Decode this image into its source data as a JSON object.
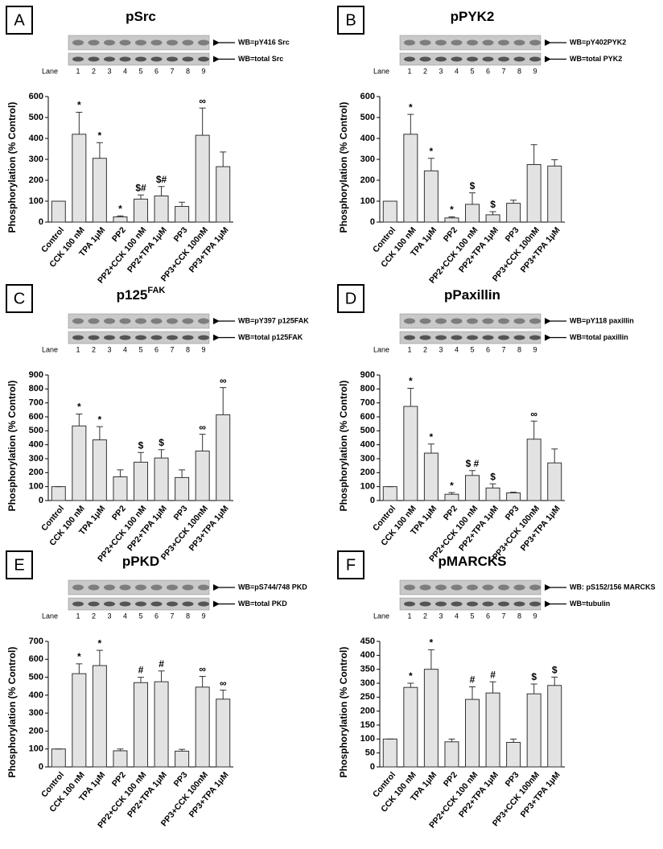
{
  "chart_data": [
    {
      "type": "bar",
      "panel": "A",
      "title": "pSrc",
      "blot_labels": [
        "WB=pY416 Src",
        "WB=total Src"
      ],
      "lane_label": "Lane",
      "lanes": [
        1,
        2,
        3,
        4,
        5,
        6,
        7,
        8,
        9
      ],
      "ylabel": "Phosphorylation (% Control)",
      "categories": [
        "Control",
        "CCK 100 nM",
        "TPA 1μM",
        "PP2",
        "PP2+CCK 100 nM",
        "PP2+TPA 1μM",
        "PP3",
        "PP3+CCK 100nM",
        "PP3+TPA 1μM"
      ],
      "values": [
        100,
        420,
        305,
        25,
        110,
        125,
        75,
        415,
        265
      ],
      "errors": [
        0,
        105,
        75,
        5,
        20,
        45,
        20,
        130,
        70
      ],
      "annotations": [
        null,
        "*",
        "*",
        "*",
        "$#",
        "$#",
        null,
        "∞",
        null
      ],
      "color": "#e3e3e3",
      "ylim": [
        0,
        600
      ],
      "yticks": [
        0,
        100,
        200,
        300,
        400,
        500,
        600
      ]
    },
    {
      "type": "bar",
      "panel": "B",
      "title": "pPYK2",
      "blot_labels": [
        "WB=pY402PYK2",
        "WB=total PYK2"
      ],
      "lane_label": "Lane",
      "lanes": [
        1,
        2,
        3,
        4,
        5,
        6,
        7,
        8,
        9
      ],
      "ylabel": "Phosphorylation (% Control)",
      "categories": [
        "Control",
        "CCK 100 nM",
        "TPA 1μM",
        "PP2",
        "PP2+CCK 100 nM",
        "PP2+TPA 1μM",
        "PP3",
        "PP3+CCK 100nM",
        "PP3+TPA 1μM"
      ],
      "values": [
        100,
        420,
        245,
        20,
        85,
        35,
        90,
        275,
        268
      ],
      "errors": [
        0,
        95,
        60,
        5,
        55,
        15,
        15,
        95,
        30
      ],
      "annotations": [
        null,
        "*",
        "*",
        "*",
        "$",
        "$",
        null,
        null,
        null
      ],
      "color": "#e3e3e3",
      "ylim": [
        0,
        600
      ],
      "yticks": [
        0,
        100,
        200,
        300,
        400,
        500,
        600
      ]
    },
    {
      "type": "bar",
      "panel": "C",
      "title": "p125",
      "title_sup": "FAK",
      "blot_labels": [
        "WB=pY397 p125FAK",
        "WB=total p125FAK"
      ],
      "lane_label": "Lane",
      "lanes": [
        1,
        2,
        3,
        4,
        5,
        6,
        7,
        8,
        9
      ],
      "ylabel": "Phosphorylation (% Control)",
      "categories": [
        "Control",
        "CCK 100 nM",
        "TPA 1μM",
        "PP2",
        "PP2+CCK 100 nM",
        "PP2+TPA 1μM",
        "PP3",
        "PP3+CCK 100nM",
        "PP3+TPA 1μM"
      ],
      "values": [
        100,
        535,
        435,
        170,
        275,
        305,
        165,
        355,
        615
      ],
      "errors": [
        0,
        85,
        95,
        50,
        70,
        60,
        55,
        120,
        195
      ],
      "annotations": [
        null,
        "*",
        "*",
        null,
        "$",
        "$",
        null,
        "∞",
        "∞"
      ],
      "color": "#e3e3e3",
      "ylim": [
        0,
        900
      ],
      "yticks": [
        0,
        100,
        200,
        300,
        400,
        500,
        600,
        700,
        800,
        900
      ]
    },
    {
      "type": "bar",
      "panel": "D",
      "title": "pPaxillin",
      "blot_labels": [
        "WB=pY118 paxillin",
        "WB=total paxillin"
      ],
      "lane_label": "Lane",
      "lanes": [
        1,
        2,
        3,
        4,
        5,
        6,
        7,
        8,
        9
      ],
      "ylabel": "Phosphorylation (% Control)",
      "categories": [
        "Control",
        "CCK 100 nM",
        "TPA 1μM",
        "PP2",
        "PP2+CCK 100 nM",
        "PP2+TPA 1μM",
        "PP3",
        "PP3+CCK 100nM",
        "PP3+TPA 1μM"
      ],
      "values": [
        100,
        675,
        340,
        45,
        180,
        90,
        55,
        440,
        270
      ],
      "errors": [
        0,
        130,
        65,
        12,
        35,
        30,
        5,
        130,
        100
      ],
      "annotations": [
        null,
        "*",
        "*",
        "*",
        "$ #",
        "$",
        null,
        "∞",
        null
      ],
      "color": "#e3e3e3",
      "ylim": [
        0,
        900
      ],
      "yticks": [
        0,
        100,
        200,
        300,
        400,
        500,
        600,
        700,
        800,
        900
      ]
    },
    {
      "type": "bar",
      "panel": "E",
      "title": "pPKD",
      "blot_labels": [
        "WB=pS744/748 PKD",
        "WB=total PKD"
      ],
      "lane_label": "Lane",
      "lanes": [
        1,
        2,
        3,
        4,
        5,
        6,
        7,
        8,
        9
      ],
      "ylabel": "Phosphorylation (% Control)",
      "categories": [
        "Control",
        "CCK 100 nM",
        "TPA 1μM",
        "PP2",
        "PP2+CCK 100 nM",
        "PP2+TPA 1μM",
        "PP3",
        "PP3+CCK 100nM",
        "PP3+TPA 1μM"
      ],
      "values": [
        100,
        520,
        565,
        90,
        470,
        475,
        88,
        445,
        378
      ],
      "errors": [
        0,
        55,
        85,
        10,
        30,
        60,
        10,
        60,
        50
      ],
      "annotations": [
        null,
        "*",
        "*",
        null,
        "#",
        "#",
        null,
        "∞",
        "∞"
      ],
      "color": "#e3e3e3",
      "ylim": [
        0,
        700
      ],
      "yticks": [
        0,
        100,
        200,
        300,
        400,
        500,
        600,
        700
      ]
    },
    {
      "type": "bar",
      "panel": "F",
      "title": "pMARCKS",
      "blot_labels": [
        "WB: pS152/156 MARCKS",
        "WB=tubulin"
      ],
      "lane_label": "Lane",
      "lanes": [
        1,
        2,
        3,
        4,
        5,
        6,
        7,
        8,
        9
      ],
      "ylabel": "Phosphorylation (% Control)",
      "categories": [
        "Control",
        "CCK 100 nM",
        "TPA 1μM",
        "PP2",
        "PP2+CCK 100 nM",
        "PP2+TPA 1μM",
        "PP3",
        "PP3+CCK 100nM",
        "PP3+TPA 1μM"
      ],
      "values": [
        100,
        285,
        350,
        90,
        242,
        265,
        88,
        262,
        292
      ],
      "errors": [
        0,
        15,
        70,
        10,
        45,
        40,
        12,
        35,
        30
      ],
      "annotations": [
        null,
        "*",
        "*",
        null,
        "#",
        "#",
        null,
        "$",
        "$"
      ],
      "color": "#e3e3e3",
      "ylim": [
        0,
        450
      ],
      "yticks": [
        0,
        50,
        100,
        150,
        200,
        250,
        300,
        350,
        400,
        450
      ]
    }
  ]
}
